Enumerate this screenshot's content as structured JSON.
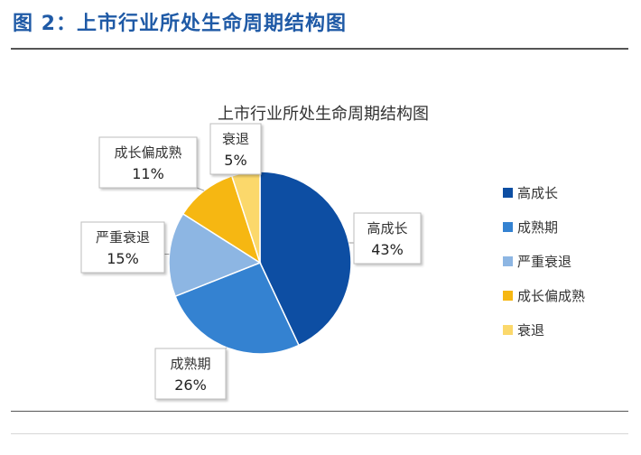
{
  "figure": {
    "title": "图 2：上市行业所处生命周期结构图"
  },
  "chart_data": {
    "type": "pie",
    "title": "上市行业所处生命周期结构图",
    "categories": [
      "高成长",
      "成熟期",
      "严重衰退",
      "成长偏成熟",
      "衰退"
    ],
    "values": [
      43,
      26,
      15,
      11,
      5
    ],
    "value_labels": [
      "43%",
      "26%",
      "15%",
      "11%",
      "5%"
    ],
    "colors": [
      "#0d4ea3",
      "#3482d1",
      "#8db6e3",
      "#f6b712",
      "#fbd86b"
    ],
    "legend_placement": "right",
    "grid": false
  }
}
